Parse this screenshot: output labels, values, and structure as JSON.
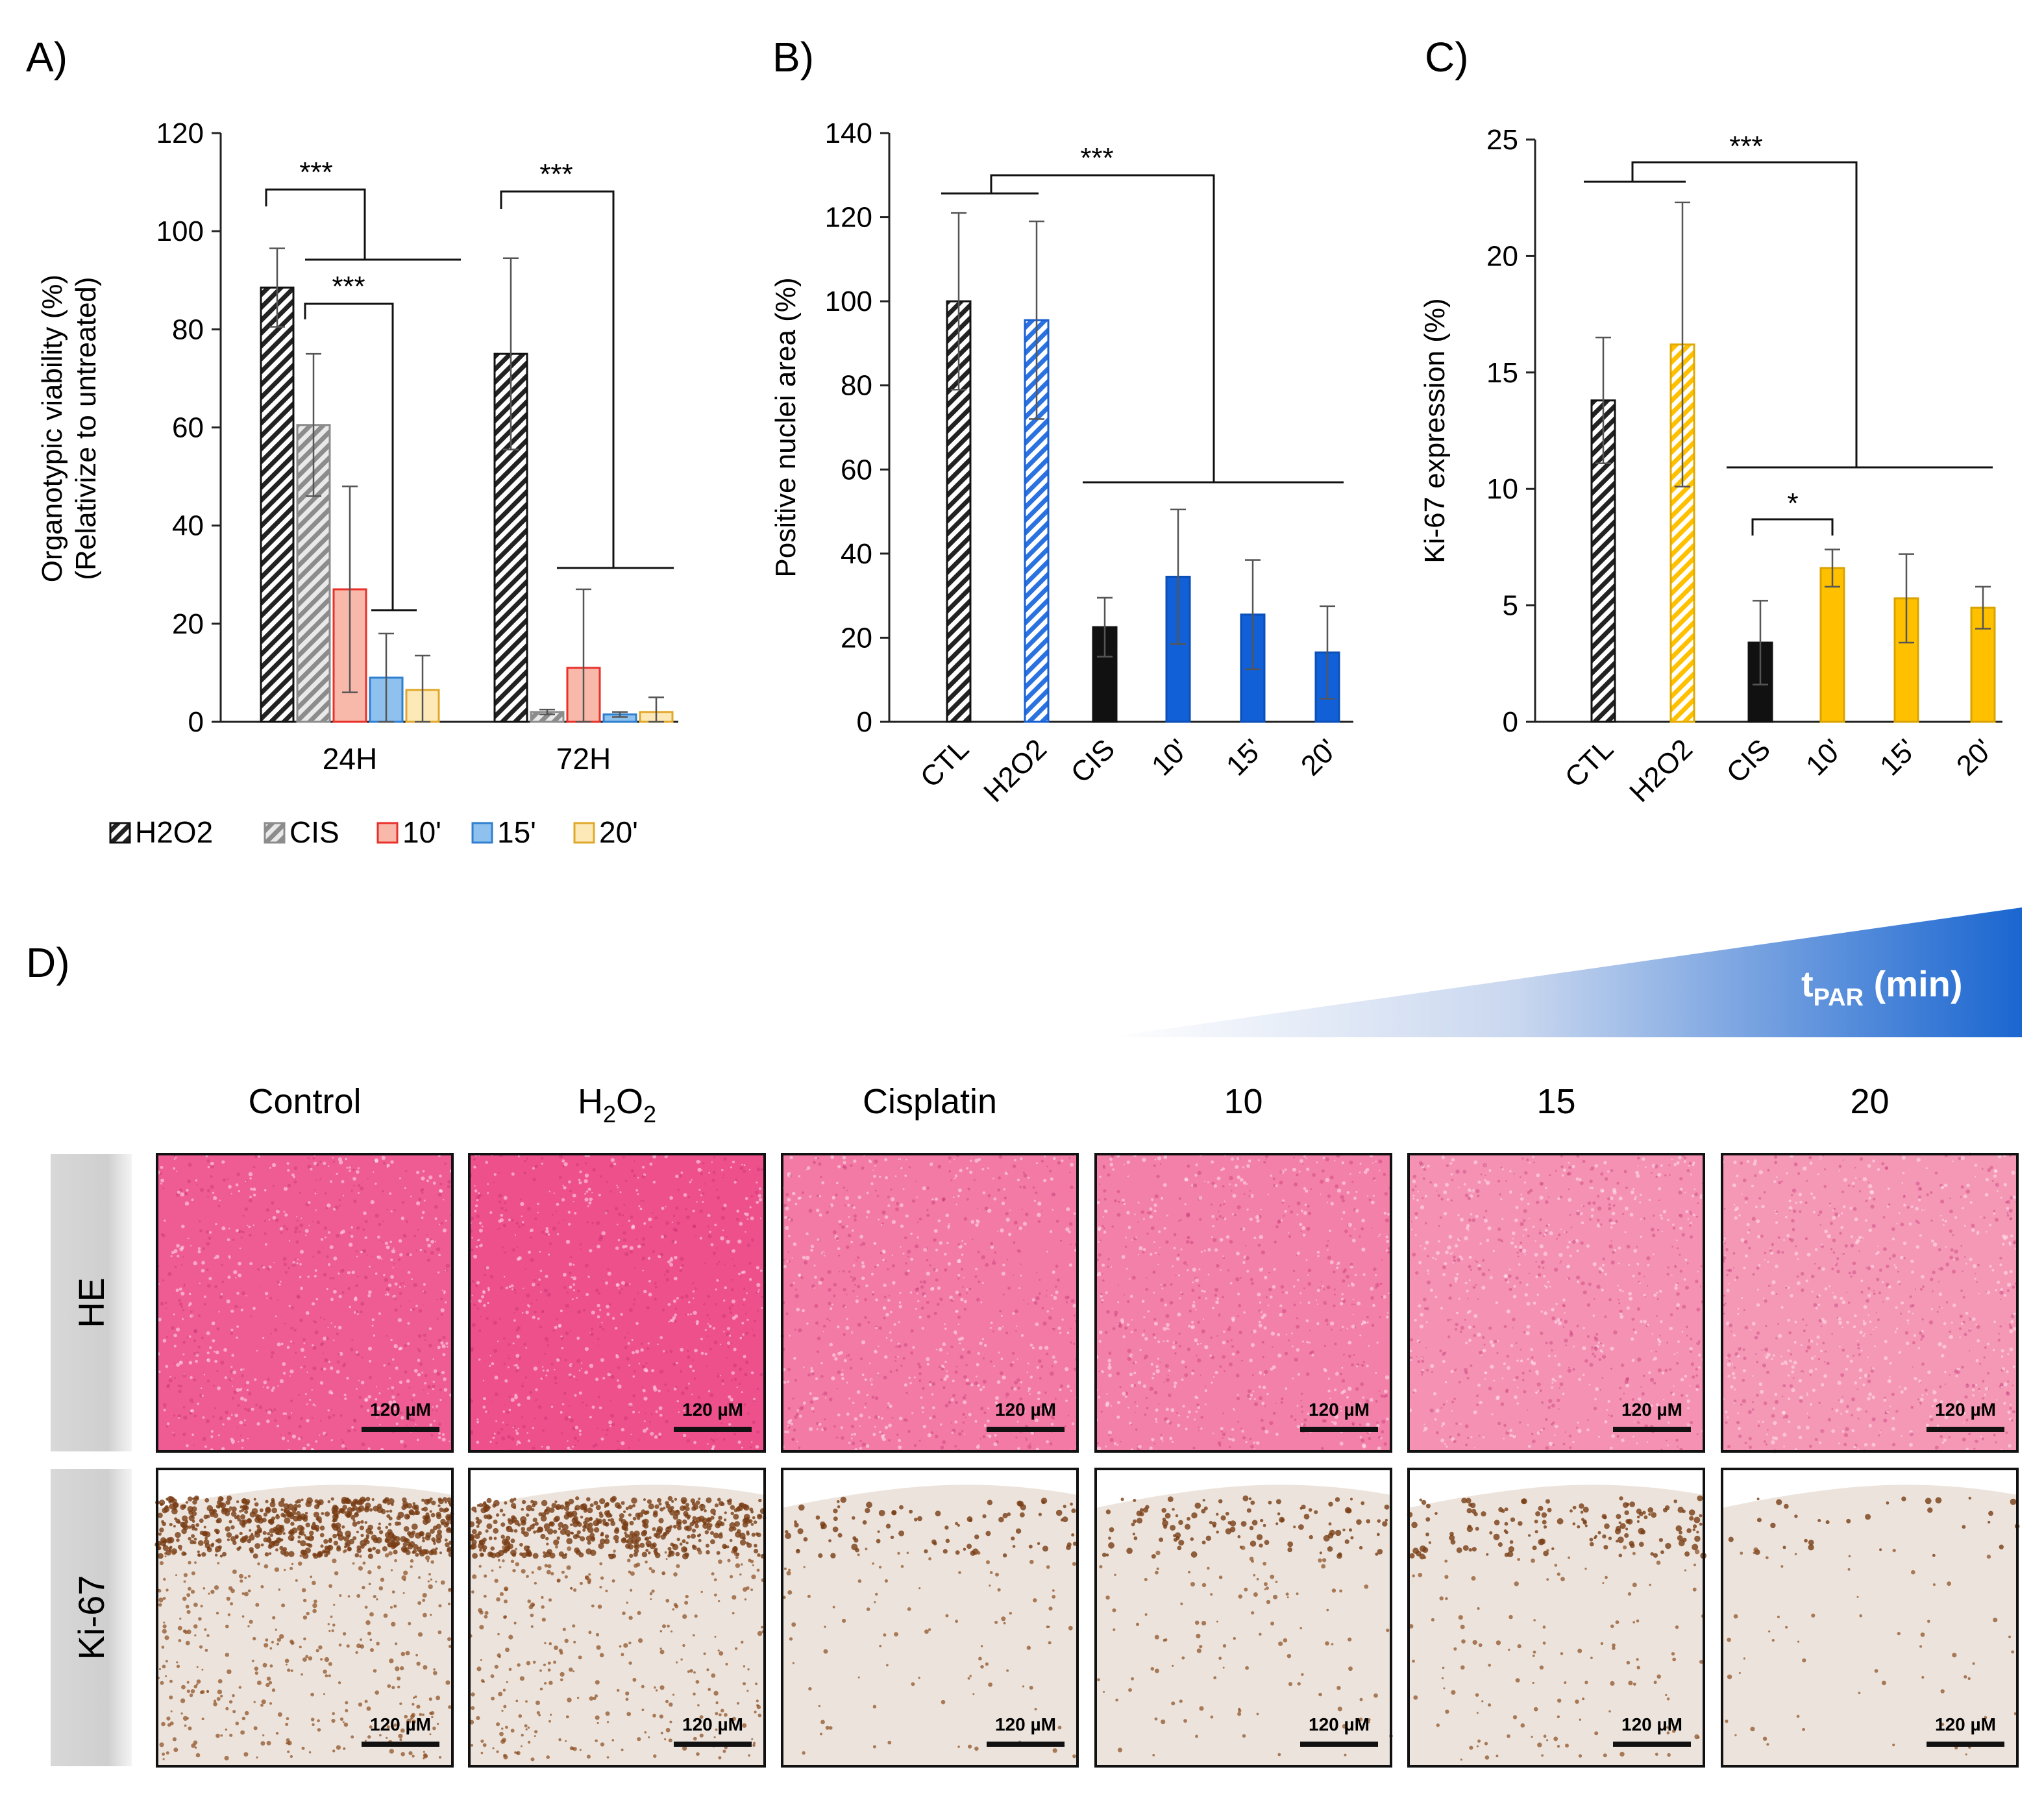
{
  "colors": {
    "black": "#111111",
    "gray": "#a6a6a6",
    "red_fill": "#f8b9aa",
    "red_edge": "#e8312a",
    "lightblue_fill": "#8fc1ee",
    "lightblue_edge": "#2e7fd0",
    "blue": "#1260d8",
    "lightyellow_fill": "#fde9b8",
    "yellow_edge": "#e0a82a",
    "yellow": "#ffc000",
    "he_pink": "#f08cb0",
    "ki_brown": "#8a4a1e"
  },
  "panel_labels": {
    "a": "A)",
    "b": "B)",
    "c": "C)",
    "d": "D)"
  },
  "chart_data": [
    {
      "type": "bar",
      "id": "A",
      "ylabel_line1": "Organotypic viability (%)",
      "ylabel_line2": "(Relativize to untreated)",
      "ylim": [
        0,
        120
      ],
      "yticks": [
        0,
        20,
        40,
        60,
        80,
        100,
        120
      ],
      "categories": [
        "24H",
        "72H"
      ],
      "series": [
        {
          "name": "H2O2",
          "legend": "H2O2",
          "style": "hatch-black",
          "values": [
            88.5,
            75
          ],
          "errors": [
            8,
            19.5
          ]
        },
        {
          "name": "CIS",
          "legend": "CIS",
          "style": "gray",
          "values": [
            60.5,
            2
          ],
          "errors": [
            14.5,
            0.5
          ]
        },
        {
          "name": "10'",
          "legend": "10'",
          "style": "red",
          "values": [
            27,
            11
          ],
          "errors": [
            21,
            16
          ]
        },
        {
          "name": "15'",
          "legend": "15'",
          "style": "lightblue",
          "values": [
            9,
            1.5
          ],
          "errors": [
            9,
            0.5
          ]
        },
        {
          "name": "20'",
          "legend": "20'",
          "style": "lightyellow",
          "values": [
            6.5,
            2
          ],
          "errors": [
            7,
            3
          ]
        }
      ],
      "significance": [
        "***",
        "***",
        "***"
      ]
    },
    {
      "type": "bar",
      "id": "B",
      "ylabel": "Positive nuclei area (%)",
      "ylim": [
        0,
        140
      ],
      "yticks": [
        0,
        20,
        40,
        60,
        80,
        100,
        120,
        140
      ],
      "categories": [
        "CTL",
        "H2O2",
        "CIS",
        "10'",
        "15'",
        "20'"
      ],
      "values": [
        100,
        95.5,
        22.5,
        34.5,
        25.5,
        16.5
      ],
      "errors": [
        21,
        23.5,
        7,
        16,
        13,
        11
      ],
      "styles": [
        "hatch-black",
        "hatch-blue",
        "black",
        "blue",
        "blue",
        "blue"
      ],
      "significance": [
        "***"
      ]
    },
    {
      "type": "bar",
      "id": "C",
      "ylabel": "Ki-67 expression (%)",
      "ylim": [
        0,
        25
      ],
      "yticks": [
        0,
        5,
        10,
        15,
        20,
        25
      ],
      "categories": [
        "CTL",
        "H2O2",
        "CIS",
        "10'",
        "15'",
        "20'"
      ],
      "values": [
        13.8,
        16.2,
        3.4,
        6.6,
        5.3,
        4.9
      ],
      "errors": [
        2.7,
        6.1,
        1.8,
        0.8,
        1.9,
        0.9
      ],
      "styles": [
        "hatch-black",
        "hatch-yellow",
        "black",
        "yellow",
        "yellow",
        "yellow"
      ],
      "significance": [
        "***",
        "*"
      ]
    }
  ],
  "panel_d": {
    "gradient_label": {
      "main": "t",
      "sub": "PAR",
      "unit": " (min)"
    },
    "columns": [
      {
        "label": "Control"
      },
      {
        "label": "H",
        "sub": "2",
        "mid": "O",
        "sub2": "2"
      },
      {
        "label": "Cisplatin"
      },
      {
        "label": "10"
      },
      {
        "label": "15"
      },
      {
        "label": "20"
      }
    ],
    "rows": [
      {
        "label": "HE",
        "stain": "he"
      },
      {
        "label": "Ki-67",
        "stain": "ki67"
      }
    ],
    "he_intensity": [
      0.9,
      1.0,
      0.65,
      0.6,
      0.45,
      0.4
    ],
    "ki67_density": [
      1.0,
      0.85,
      0.15,
      0.2,
      0.25,
      0.05
    ],
    "scale_bar": "120 µM"
  }
}
